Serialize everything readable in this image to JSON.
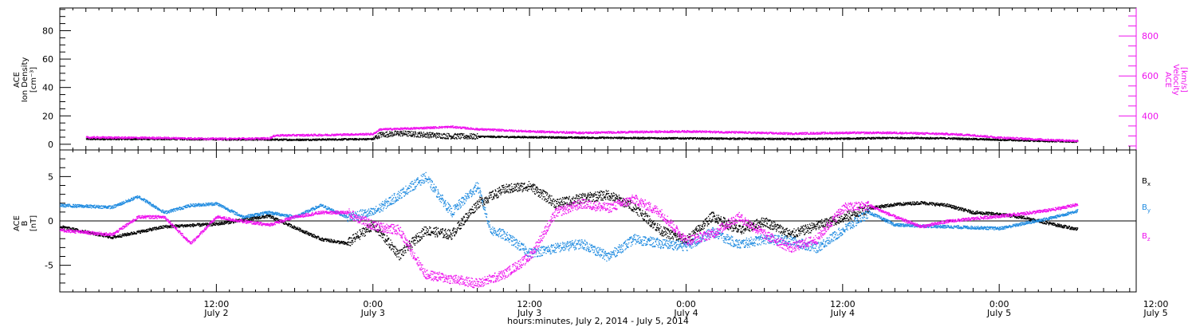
{
  "chart_data": {
    "type": "scatter",
    "xlabel": "hours:minutes, July  2, 2014 - July  5, 2014",
    "x_ticks": [
      {
        "hour": 12,
        "time": "12:00",
        "date": "July 2"
      },
      {
        "hour": 24,
        "time": "0:00",
        "date": "July 3"
      },
      {
        "hour": 36,
        "time": "12:00",
        "date": "July 3"
      },
      {
        "hour": 48,
        "time": "0:00",
        "date": "July 4"
      },
      {
        "hour": 60,
        "time": "12:00",
        "date": "July 4"
      },
      {
        "hour": 72,
        "time": "0:00",
        "date": "July 5"
      },
      {
        "hour": 84,
        "time": "12:00",
        "date": "July 5"
      }
    ],
    "colors": {
      "black": "#000000",
      "blue": "#1f8be0",
      "magenta": "#ee11ee"
    },
    "panels": [
      {
        "name": "plasma",
        "ylabel_left": [
          "ACE",
          "Ion Density",
          "[cm⁻³]"
        ],
        "ylabel_right": [
          "ACE",
          "Velocity",
          "[km/s]"
        ],
        "ylim_left": [
          -4,
          96
        ],
        "yticks_left": [
          0,
          20,
          40,
          60,
          80
        ],
        "ylim_right": [
          230,
          940
        ],
        "yticks_right": [
          400,
          600,
          800
        ],
        "series": [
          {
            "axis": "left",
            "color": "black",
            "points": [
              [
                2,
                4
              ],
              [
                8,
                4
              ],
              [
                12,
                3.8
              ],
              [
                18,
                3.5
              ],
              [
                24,
                4
              ],
              [
                24.5,
                7
              ],
              [
                26,
                8
              ],
              [
                28,
                7
              ],
              [
                30,
                6
              ],
              [
                34,
                5.5
              ],
              [
                40,
                5
              ],
              [
                48,
                4.5
              ],
              [
                56,
                4
              ],
              [
                60,
                4.3
              ],
              [
                64,
                4.8
              ],
              [
                68,
                4.5
              ],
              [
                72,
                3.5
              ],
              [
                76,
                2.5
              ],
              [
                78,
                2.2
              ]
            ]
          },
          {
            "axis": "right",
            "color": "magenta",
            "points": [
              [
                2,
                295
              ],
              [
                8,
                292
              ],
              [
                12,
                288
              ],
              [
                16,
                290
              ],
              [
                16.5,
                305
              ],
              [
                20,
                307
              ],
              [
                24,
                312
              ],
              [
                24.5,
                335
              ],
              [
                27,
                340
              ],
              [
                30,
                348
              ],
              [
                32,
                336
              ],
              [
                36,
                325
              ],
              [
                40,
                318
              ],
              [
                44,
                322
              ],
              [
                48,
                325
              ],
              [
                52,
                320
              ],
              [
                56,
                314
              ],
              [
                60,
                318
              ],
              [
                64,
                318
              ],
              [
                68,
                312
              ],
              [
                70,
                306
              ],
              [
                72,
                294
              ],
              [
                76,
                282
              ],
              [
                78,
                278
              ]
            ]
          }
        ]
      },
      {
        "name": "imf",
        "ylabel": [
          "ACE",
          "B",
          "[nT]"
        ],
        "ylim": [
          -8,
          8
        ],
        "yticks": [
          -5,
          0,
          5
        ],
        "legend": [
          {
            "label": "B",
            "subscript": "x",
            "color": "black"
          },
          {
            "label": "B",
            "subscript": "y",
            "color": "blue"
          },
          {
            "label": "B",
            "subscript": "z",
            "color": "magenta"
          }
        ],
        "series": [
          {
            "component": "x",
            "color": "black",
            "points": [
              [
                0,
                -0.6
              ],
              [
                4,
                -1.8
              ],
              [
                8,
                -0.6
              ],
              [
                12,
                -0.3
              ],
              [
                16,
                0.6
              ],
              [
                20,
                -2
              ],
              [
                22,
                -2.5
              ],
              [
                24,
                -0.4
              ],
              [
                26,
                -3.8
              ],
              [
                28,
                -1
              ],
              [
                30,
                -1.5
              ],
              [
                32,
                2
              ],
              [
                34,
                3.6
              ],
              [
                36,
                4
              ],
              [
                38,
                2
              ],
              [
                40,
                2.6
              ],
              [
                42,
                3
              ],
              [
                44,
                1.6
              ],
              [
                46,
                -1
              ],
              [
                48,
                -2.2
              ],
              [
                50,
                0.6
              ],
              [
                52,
                -1
              ],
              [
                54,
                0
              ],
              [
                56,
                -1.5
              ],
              [
                58,
                -0.5
              ],
              [
                60,
                0.4
              ],
              [
                62,
                1.5
              ],
              [
                64,
                1.9
              ],
              [
                66,
                2.1
              ],
              [
                68,
                1.8
              ],
              [
                70,
                1
              ],
              [
                72,
                0.8
              ],
              [
                74,
                0.4
              ],
              [
                76,
                -0.3
              ],
              [
                78,
                -0.9
              ]
            ]
          },
          {
            "component": "y",
            "color": "blue",
            "points": [
              [
                0,
                1.8
              ],
              [
                4,
                1.6
              ],
              [
                6,
                2.8
              ],
              [
                8,
                1
              ],
              [
                10,
                1.8
              ],
              [
                12,
                2
              ],
              [
                14,
                0.5
              ],
              [
                16,
                1
              ],
              [
                18,
                0.5
              ],
              [
                20,
                1.8
              ],
              [
                22,
                0.5
              ],
              [
                24,
                1
              ],
              [
                26,
                3
              ],
              [
                28,
                5
              ],
              [
                30,
                1
              ],
              [
                32,
                4
              ],
              [
                33,
                -1
              ],
              [
                34,
                -1.5
              ],
              [
                36,
                -3.6
              ],
              [
                38,
                -3
              ],
              [
                40,
                -2.5
              ],
              [
                42,
                -4
              ],
              [
                44,
                -2
              ],
              [
                46,
                -2.5
              ],
              [
                48,
                -2.8
              ],
              [
                50,
                -1.2
              ],
              [
                52,
                -2.6
              ],
              [
                54,
                -2
              ],
              [
                56,
                -2.2
              ],
              [
                58,
                -3
              ],
              [
                60,
                -1
              ],
              [
                62,
                1
              ],
              [
                64,
                -0.4
              ],
              [
                66,
                -0.5
              ],
              [
                68,
                -0.6
              ],
              [
                70,
                -0.7
              ],
              [
                72,
                -0.8
              ],
              [
                74,
                -0.2
              ],
              [
                76,
                0.4
              ],
              [
                78,
                1.2
              ]
            ]
          },
          {
            "component": "z",
            "color": "magenta",
            "points": [
              [
                0,
                -1
              ],
              [
                4,
                -1.5
              ],
              [
                6,
                0.5
              ],
              [
                8,
                0.5
              ],
              [
                10,
                -2.5
              ],
              [
                12,
                0.5
              ],
              [
                14,
                0
              ],
              [
                16,
                -0.4
              ],
              [
                18,
                0.5
              ],
              [
                20,
                1
              ],
              [
                22,
                1
              ],
              [
                24,
                -0.5
              ],
              [
                26,
                -1
              ],
              [
                28,
                -6
              ],
              [
                30,
                -6.5
              ],
              [
                32,
                -7
              ],
              [
                34,
                -6
              ],
              [
                36,
                -4
              ],
              [
                38,
                1
              ],
              [
                40,
                2
              ],
              [
                42,
                1.5
              ],
              [
                44,
                2.5
              ],
              [
                46,
                1
              ],
              [
                48,
                -2.2
              ],
              [
                50,
                -1.4
              ],
              [
                52,
                0.5
              ],
              [
                54,
                -1.5
              ],
              [
                56,
                -3
              ],
              [
                58,
                -2
              ],
              [
                60,
                1.5
              ],
              [
                62,
                1.8
              ],
              [
                64,
                0.5
              ],
              [
                66,
                -0.6
              ],
              [
                68,
                0
              ],
              [
                70,
                0.3
              ],
              [
                72,
                0.6
              ],
              [
                74,
                0.9
              ],
              [
                76,
                1.3
              ],
              [
                78,
                1.9
              ]
            ]
          }
        ]
      }
    ]
  }
}
